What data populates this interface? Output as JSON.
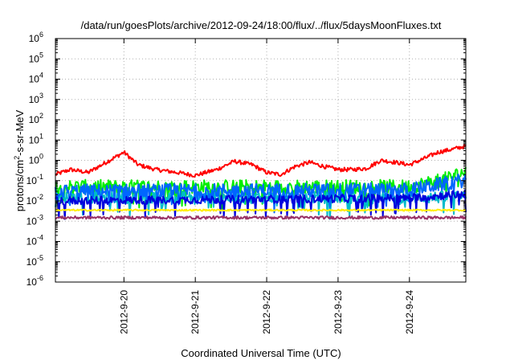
{
  "chart_data": {
    "type": "line",
    "title": "/data/run/goesPlots/archive/2012-09-24/18:00/flux/../flux/5daysMoonFluxes.txt",
    "xlabel": "Coordinated Universal Time (UTC)",
    "ylabel_parts": {
      "base": "protons/cm",
      "sup": "2",
      "rest": "-s-sr-MeV"
    },
    "yscale": "log",
    "ylim_exp": [
      -6,
      6
    ],
    "y_tick_labels": [
      {
        "exp": -6,
        "base": "10",
        "sup": "-6"
      },
      {
        "exp": -5,
        "base": "10",
        "sup": "-5"
      },
      {
        "exp": -4,
        "base": "10",
        "sup": "-4"
      },
      {
        "exp": -3,
        "base": "10",
        "sup": "-3"
      },
      {
        "exp": -2,
        "base": "10",
        "sup": "-2"
      },
      {
        "exp": -1,
        "base": "10",
        "sup": "-1"
      },
      {
        "exp": 0,
        "base": "10",
        "sup": "0"
      },
      {
        "exp": 1,
        "base": "10",
        "sup": "1"
      },
      {
        "exp": 2,
        "base": "10",
        "sup": "2"
      },
      {
        "exp": 3,
        "base": "10",
        "sup": "3"
      },
      {
        "exp": 4,
        "base": "10",
        "sup": "4"
      },
      {
        "exp": 5,
        "base": "10",
        "sup": "5"
      },
      {
        "exp": 6,
        "base": "10",
        "sup": "6"
      }
    ],
    "xlim_days": [
      -0.96,
      4.79
    ],
    "x_ticks": [
      {
        "day": 0,
        "label": "2012-9-20"
      },
      {
        "day": 1,
        "label": "2012-9-21"
      },
      {
        "day": 2,
        "label": "2012-9-22"
      },
      {
        "day": 3,
        "label": "2012-9-23"
      },
      {
        "day": 4,
        "label": "2012-9-24"
      }
    ],
    "grid": true,
    "legend": "none",
    "series": [
      {
        "color": "#ff0000",
        "level": 0.35,
        "noise": 0.1,
        "anchors": [
          [
            -0.96,
            0.2
          ],
          [
            -0.75,
            0.35
          ],
          [
            -0.5,
            0.25
          ],
          [
            -0.2,
            1.0
          ],
          [
            0.0,
            2.5
          ],
          [
            0.2,
            0.6
          ],
          [
            0.45,
            0.35
          ],
          [
            0.75,
            0.25
          ],
          [
            1.0,
            0.18
          ],
          [
            1.3,
            0.35
          ],
          [
            1.55,
            0.9
          ],
          [
            1.8,
            0.6
          ],
          [
            2.0,
            0.25
          ],
          [
            2.2,
            0.2
          ],
          [
            2.4,
            0.5
          ],
          [
            2.6,
            0.8
          ],
          [
            2.8,
            0.5
          ],
          [
            3.0,
            0.35
          ],
          [
            3.2,
            0.35
          ],
          [
            3.4,
            0.4
          ],
          [
            3.6,
            1.0
          ],
          [
            3.8,
            0.8
          ],
          [
            4.0,
            0.6
          ],
          [
            4.2,
            1.2
          ],
          [
            4.4,
            2.5
          ],
          [
            4.6,
            3.5
          ],
          [
            4.79,
            5.0
          ]
        ]
      },
      {
        "color": "#00ee00",
        "level": 0.05,
        "noise": 0.35,
        "anchors": [
          [
            -0.96,
            0.05
          ],
          [
            4.0,
            0.05
          ],
          [
            4.5,
            0.12
          ],
          [
            4.79,
            0.28
          ]
        ]
      },
      {
        "color": "#00bbcc",
        "level": 0.015,
        "noise": 0.3,
        "anchors": [
          [
            -0.96,
            0.015
          ],
          [
            4.79,
            0.015
          ]
        ]
      },
      {
        "color": "#0066ff",
        "level": 0.03,
        "noise": 0.35,
        "anchors": [
          [
            -0.96,
            0.03
          ],
          [
            4.0,
            0.035
          ],
          [
            4.79,
            0.11
          ]
        ]
      },
      {
        "color": "#0000dd",
        "level": 0.012,
        "noise": 0.2,
        "anchors": [
          [
            -0.96,
            0.01
          ],
          [
            4.0,
            0.014
          ],
          [
            4.79,
            0.022
          ]
        ]
      },
      {
        "color": "#ffee00",
        "level": 0.0035,
        "noise": 0.04,
        "anchors": [
          [
            -0.96,
            0.0035
          ],
          [
            4.79,
            0.0035
          ]
        ]
      },
      {
        "color": "#993366",
        "level": 0.0015,
        "noise": 0.07,
        "anchors": [
          [
            -0.96,
            0.0015
          ],
          [
            4.79,
            0.0015
          ]
        ]
      }
    ]
  }
}
